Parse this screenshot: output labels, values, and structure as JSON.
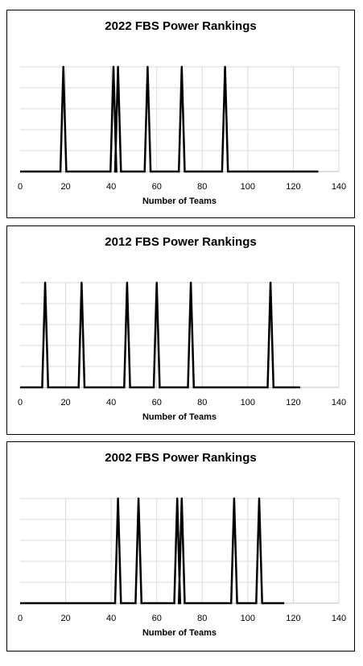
{
  "chart_data": [
    {
      "type": "line",
      "title": "2022 FBS Power Rankings",
      "xlabel": "Number of Teams",
      "ylabel": "",
      "xlim": [
        0,
        140
      ],
      "xticks": [
        "0",
        "20",
        "40",
        "60",
        "80",
        "100",
        "120",
        "140"
      ],
      "grid": true,
      "series_color": "#000000",
      "x_max": 131,
      "spikes": [
        19,
        41,
        43,
        56,
        71,
        90
      ]
    },
    {
      "type": "line",
      "title": "2012 FBS Power Rankings",
      "xlabel": "Number of Teams",
      "ylabel": "",
      "xlim": [
        0,
        140
      ],
      "xticks": [
        "0",
        "20",
        "40",
        "60",
        "80",
        "100",
        "120",
        "140"
      ],
      "grid": true,
      "series_color": "#000000",
      "x_max": 123,
      "spikes": [
        11,
        27,
        47,
        60,
        75,
        110
      ]
    },
    {
      "type": "line",
      "title": "2002 FBS Power Rankings",
      "xlabel": "Number of Teams",
      "ylabel": "",
      "xlim": [
        0,
        140
      ],
      "xticks": [
        "0",
        "20",
        "40",
        "60",
        "80",
        "100",
        "120",
        "140"
      ],
      "grid": true,
      "series_color": "#000000",
      "x_max": 116,
      "spikes": [
        43,
        52,
        69,
        71,
        94,
        105
      ]
    }
  ]
}
